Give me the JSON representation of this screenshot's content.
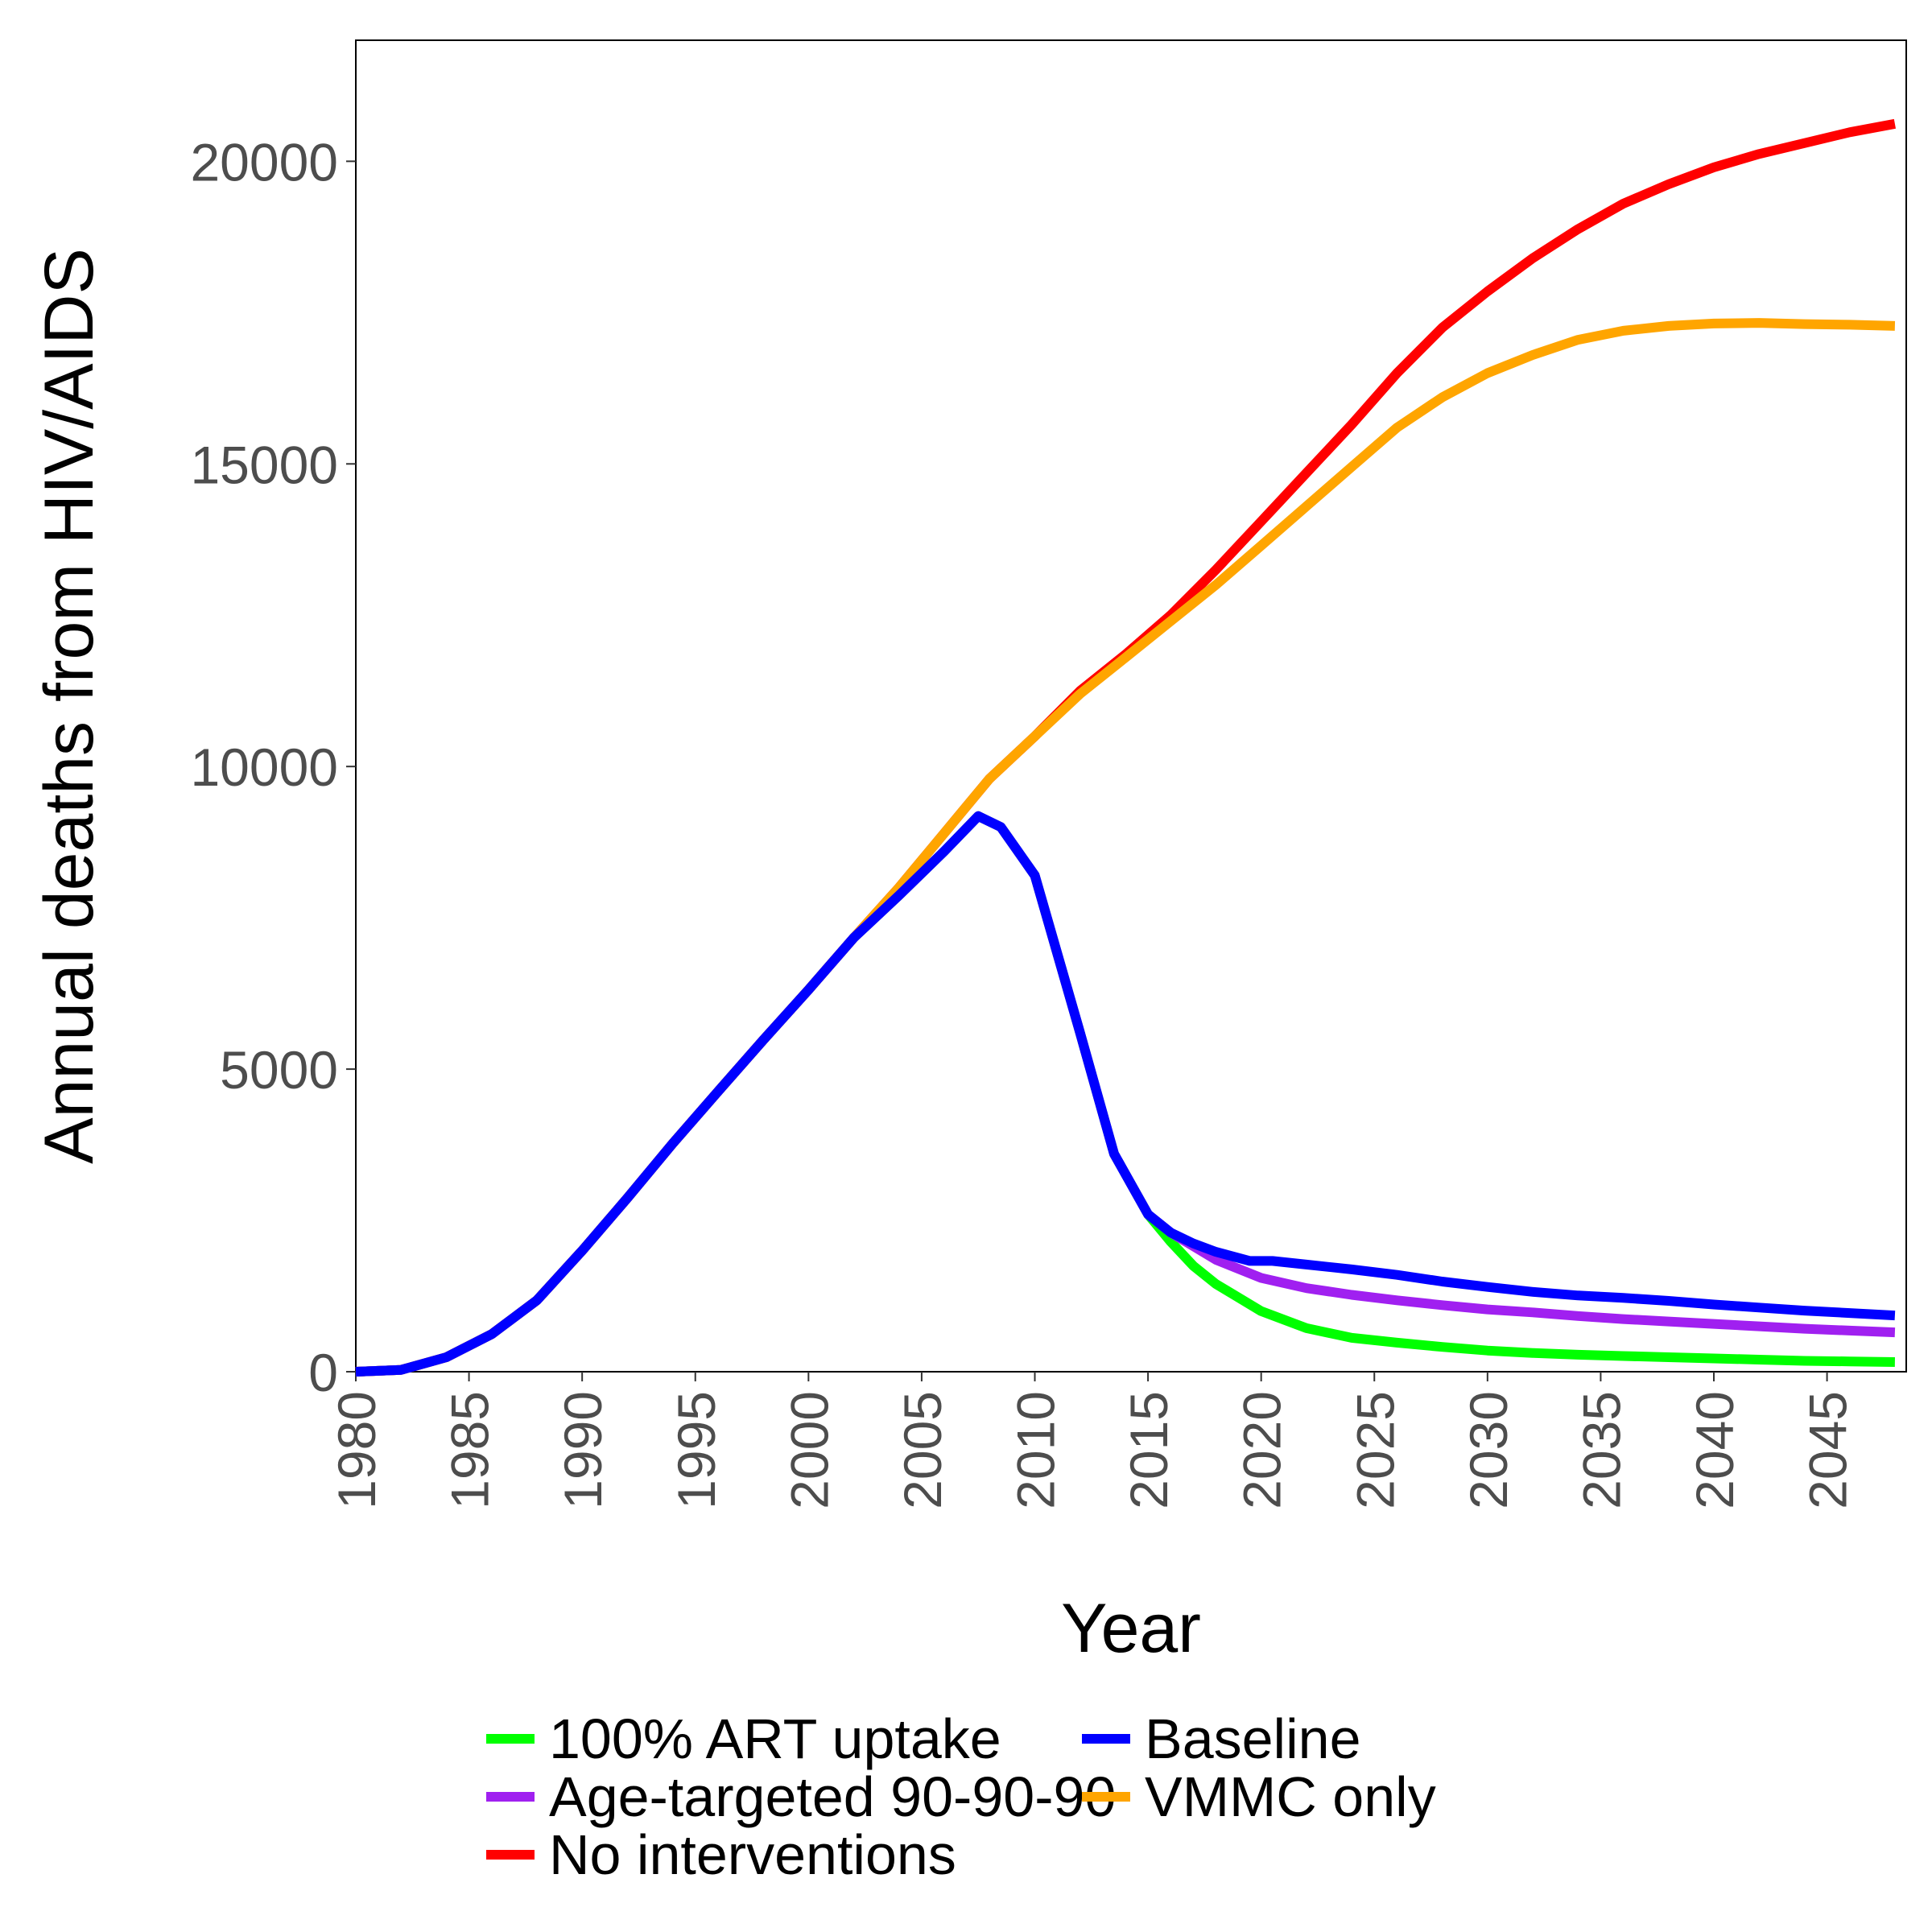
{
  "chart_data": {
    "type": "line",
    "xlabel": "Year",
    "ylabel": "Annual deaths from HIV/AIDS",
    "xlim": [
      1980,
      2048.5
    ],
    "ylim": [
      0,
      22000
    ],
    "x_ticks": [
      1980,
      1985,
      1990,
      1995,
      2000,
      2005,
      2010,
      2015,
      2020,
      2025,
      2030,
      2035,
      2040,
      2045
    ],
    "y_ticks": [
      0,
      5000,
      10000,
      15000,
      20000
    ],
    "grid": false,
    "legend_position": "bottom",
    "series": [
      {
        "name": "100% ART uptake",
        "color": "#00ff00",
        "x": [
          1980,
          1982,
          1984,
          1986,
          1988,
          1990,
          1992,
          1994,
          1996,
          1998,
          2000,
          2002,
          2004,
          2006,
          2007.5,
          2008.5,
          2010,
          2012,
          2013.5,
          2015,
          2016,
          2017,
          2018,
          2020,
          2022,
          2024,
          2026,
          2028,
          2030,
          2032,
          2034,
          2036,
          2038,
          2040,
          2042,
          2044,
          2046,
          2048
        ],
        "y": [
          0,
          30,
          240,
          620,
          1180,
          2000,
          2870,
          3770,
          4630,
          5480,
          6310,
          7170,
          7870,
          8600,
          9180,
          9000,
          8200,
          5600,
          3600,
          2600,
          2150,
          1750,
          1450,
          1000,
          720,
          560,
          480,
          410,
          350,
          310,
          280,
          260,
          240,
          220,
          200,
          180,
          170,
          160
        ]
      },
      {
        "name": "No interventions",
        "color": "#ff0000",
        "x": [
          1980,
          1982,
          1984,
          1986,
          1988,
          1990,
          1992,
          1994,
          1996,
          1998,
          2000,
          2002,
          2004,
          2006,
          2008,
          2010,
          2012,
          2014,
          2016,
          2018,
          2020,
          2022,
          2024,
          2026,
          2028,
          2030,
          2032,
          2034,
          2036,
          2038,
          2040,
          2042,
          2044,
          2046,
          2048
        ],
        "y": [
          0,
          30,
          240,
          620,
          1180,
          2000,
          2870,
          3770,
          4630,
          5480,
          6310,
          7170,
          8000,
          8900,
          9800,
          10500,
          11250,
          11850,
          12500,
          13250,
          14050,
          14850,
          15650,
          16500,
          17250,
          17850,
          18400,
          18880,
          19300,
          19620,
          19900,
          20120,
          20300,
          20480,
          20620
        ]
      },
      {
        "name": "VMMC only",
        "color": "#ffa500",
        "x": [
          1980,
          1982,
          1984,
          1986,
          1988,
          1990,
          1992,
          1994,
          1996,
          1998,
          2000,
          2002,
          2004,
          2006,
          2008,
          2010,
          2012,
          2014,
          2016,
          2018,
          2020,
          2022,
          2024,
          2026,
          2028,
          2030,
          2032,
          2034,
          2036,
          2038,
          2040,
          2042,
          2044,
          2046,
          2048
        ],
        "y": [
          0,
          30,
          240,
          620,
          1180,
          2000,
          2870,
          3770,
          4630,
          5480,
          6310,
          7170,
          8000,
          8900,
          9800,
          10500,
          11200,
          11800,
          12400,
          13000,
          13650,
          14300,
          14950,
          15600,
          16100,
          16500,
          16800,
          17050,
          17200,
          17280,
          17320,
          17330,
          17310,
          17300,
          17280
        ]
      },
      {
        "name": "Age-targeted 90-90-90",
        "color": "#a020f0",
        "x": [
          1980,
          1982,
          1984,
          1986,
          1988,
          1990,
          1992,
          1994,
          1996,
          1998,
          2000,
          2002,
          2004,
          2006,
          2007.5,
          2008.5,
          2010,
          2012,
          2013.5,
          2015,
          2016,
          2018,
          2020,
          2022,
          2024,
          2026,
          2028,
          2030,
          2032,
          2034,
          2036,
          2038,
          2040,
          2042,
          2044,
          2046,
          2048
        ],
        "y": [
          0,
          30,
          240,
          620,
          1180,
          2000,
          2870,
          3770,
          4630,
          5480,
          6310,
          7170,
          7870,
          8600,
          9180,
          9000,
          8200,
          5600,
          3600,
          2600,
          2300,
          1850,
          1550,
          1380,
          1270,
          1180,
          1100,
          1030,
          980,
          920,
          870,
          830,
          790,
          750,
          710,
          680,
          650
        ]
      },
      {
        "name": "Baseline",
        "color": "#0000ff",
        "x": [
          1980,
          1982,
          1984,
          1986,
          1988,
          1990,
          1992,
          1994,
          1996,
          1998,
          2000,
          2002,
          2004,
          2006,
          2007.5,
          2008.5,
          2010,
          2012,
          2013.5,
          2015,
          2016,
          2017,
          2018,
          2019.5,
          2020.5,
          2022,
          2024,
          2026,
          2028,
          2030,
          2032,
          2034,
          2036,
          2038,
          2040,
          2042,
          2044,
          2046,
          2048
        ],
        "y": [
          0,
          30,
          240,
          620,
          1180,
          2000,
          2870,
          3770,
          4630,
          5480,
          6310,
          7170,
          7870,
          8600,
          9180,
          9000,
          8200,
          5600,
          3600,
          2600,
          2300,
          2120,
          1980,
          1830,
          1830,
          1770,
          1690,
          1600,
          1490,
          1400,
          1320,
          1260,
          1220,
          1170,
          1110,
          1060,
          1010,
          970,
          930
        ]
      }
    ],
    "legend_order": [
      0,
      3,
      1,
      4,
      2
    ]
  }
}
